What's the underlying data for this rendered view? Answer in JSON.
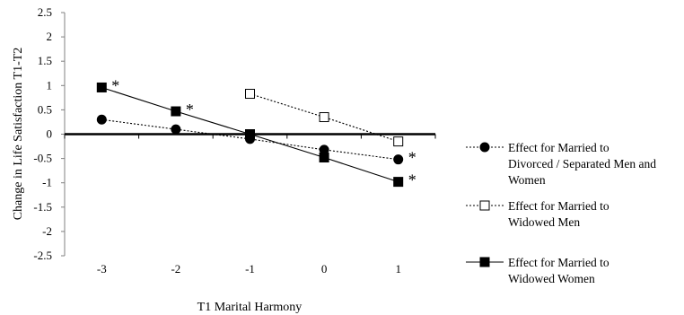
{
  "chart_data": {
    "type": "line",
    "xlabel": "T1 Marital Harmony",
    "ylabel": "Change in Life Satisfaction T1-T2",
    "ylim": [
      -2.5,
      2.5
    ],
    "ytick_step": 0.5,
    "y_ticks": [
      "2.5",
      "2",
      "1.5",
      "1",
      "0.5",
      "0",
      "-0.5",
      "-1",
      "-1.5",
      "-2",
      "-2.5"
    ],
    "categories": [
      "-3",
      "-2",
      "-1",
      "0",
      "1"
    ],
    "grid": false,
    "legend_position": "right",
    "series": [
      {
        "name_lines": [
          "Effect for Married to",
          "Divorced / Separated Men and",
          "Women"
        ],
        "line_style": "dotted",
        "marker": "filled-circle",
        "color": "#000000",
        "values": [
          0.3,
          0.1,
          -0.1,
          -0.32,
          -0.52
        ],
        "significance": [
          "",
          "",
          "",
          "",
          "*"
        ]
      },
      {
        "name_lines": [
          "Effect for Married to",
          "Widowed Men"
        ],
        "line_style": "dotted",
        "marker": "open-square",
        "color": "#000000",
        "values": [
          null,
          null,
          0.83,
          0.35,
          -0.15
        ],
        "significance": [
          "",
          "",
          "",
          "",
          ""
        ]
      },
      {
        "name_lines": [
          "Effect for Married to",
          "Widowed Women"
        ],
        "line_style": "solid",
        "marker": "filled-square",
        "color": "#000000",
        "values": [
          0.96,
          0.47,
          0.0,
          -0.48,
          -0.98
        ],
        "significance": [
          "*",
          "*",
          "",
          "",
          "*"
        ]
      }
    ]
  }
}
